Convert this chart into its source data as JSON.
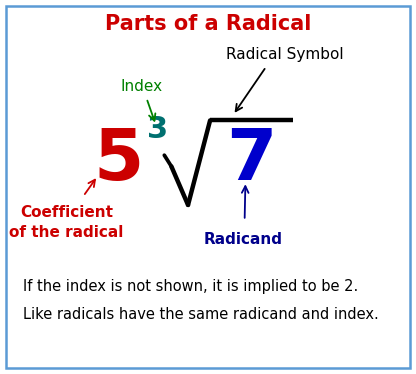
{
  "title": "Parts of a Radical",
  "title_color": "#cc0000",
  "title_fontsize": 15,
  "bg_color": "#ffffff",
  "border_color": "#5b9bd5",
  "coeff_text": "5",
  "coeff_color": "#cc0000",
  "coeff_fontsize": 52,
  "index_text": "3",
  "index_color": "#007070",
  "index_fontsize": 22,
  "radical_color": "#000000",
  "radicand_text": "7",
  "radicand_color": "#0000cc",
  "radicand_fontsize": 52,
  "label_index": "Index",
  "label_index_color": "#008000",
  "label_index_fontsize": 11,
  "label_radical": "Radical Symbol",
  "label_radical_color": "#000000",
  "label_radical_fontsize": 11,
  "label_coeff": "Coefficient\nof the radical",
  "label_coeff_color": "#cc0000",
  "label_coeff_fontsize": 11,
  "label_radicand": "Radicand",
  "label_radicand_color": "#00008b",
  "label_radicand_fontsize": 11,
  "footnote1": "If the index is not shown, it is implied to be 2.",
  "footnote2": "Like radicals have the same radicand and index.",
  "footnote_color": "#000000",
  "footnote_fontsize": 10.5,
  "xlim": [
    0,
    10
  ],
  "ylim": [
    0,
    10
  ]
}
